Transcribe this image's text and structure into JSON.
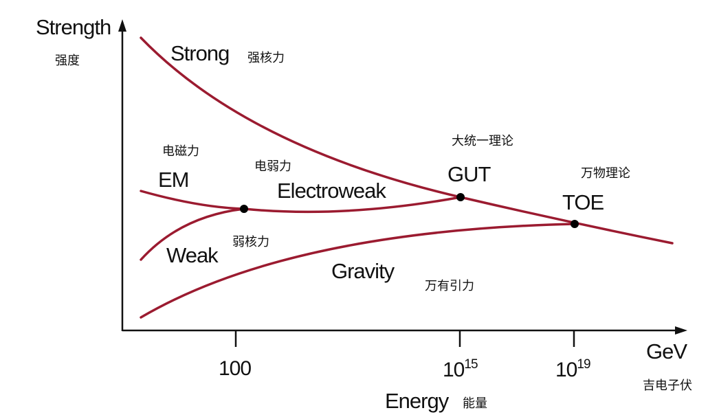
{
  "axes": {
    "y_label": "Strength",
    "y_label_cn": "强度",
    "x_label": "Energy",
    "x_label_cn": "能量",
    "x_unit": "GeV",
    "x_unit_cn": "吉电子伏",
    "x_ticks": [
      "100",
      {
        "base": "10",
        "exponent": "15"
      },
      {
        "base": "10",
        "exponent": "19"
      }
    ]
  },
  "forces": [
    {
      "label": "Strong",
      "label_cn": "强核力"
    },
    {
      "label": "EM",
      "label_cn": "电磁力"
    },
    {
      "label": "Weak",
      "label_cn": "弱核力"
    },
    {
      "label": "Gravity",
      "label_cn": "万有引力"
    }
  ],
  "unifications": [
    {
      "label": "Electroweak",
      "label_cn": "电弱力"
    },
    {
      "label": "GUT",
      "label_cn": "大统一理论"
    },
    {
      "label": "TOE",
      "label_cn": "万物理论"
    }
  ]
}
